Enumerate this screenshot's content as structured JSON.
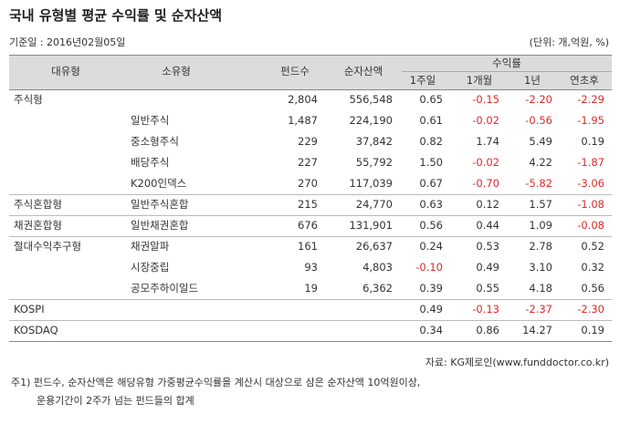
{
  "header": {
    "title": "국내 유형별 평균 수익률 및 순자산액",
    "date": "기준일 : 2016년02월05일",
    "unit": "(단위: 개,억원, %)"
  },
  "table": {
    "columns": [
      "대유형",
      "소유형",
      "펀드수",
      "순자산액"
    ],
    "returns_title": "수익률",
    "periods": [
      "1주일",
      "1개월",
      "1년",
      "연초후"
    ],
    "rows": [
      {
        "group": "주식형",
        "count": "2,804",
        "assets": "556,548",
        "returns": [
          "0.65",
          "-0.15",
          "-2.20",
          "-2.29"
        ]
      },
      {
        "name": "일반주식",
        "count": "1,487",
        "assets": "224,190",
        "returns": [
          "0.61",
          "-0.02",
          "-0.56",
          "-1.95"
        ]
      },
      {
        "name": "중소형주식",
        "count": "229",
        "assets": "37,842",
        "returns": [
          "0.82",
          "1.74",
          "5.49",
          "0.19"
        ]
      },
      {
        "name": "배당주식",
        "count": "227",
        "assets": "55,792",
        "returns": [
          "1.50",
          "-0.02",
          "4.22",
          "-1.87"
        ]
      },
      {
        "name": "K200인덱스",
        "count": "270",
        "assets": "117,039",
        "returns": [
          "0.67",
          "-0.70",
          "-5.82",
          "-3.06"
        ]
      },
      {
        "group": "주식혼합형",
        "name": "일반주식혼합",
        "count": "215",
        "assets": "24,770",
        "returns": [
          "0.63",
          "0.12",
          "1.57",
          "-1.08"
        ]
      },
      {
        "group": "채권혼합형",
        "name": "일반채권혼합",
        "count": "676",
        "assets": "131,901",
        "returns": [
          "0.56",
          "0.44",
          "1.09",
          "-0.08"
        ]
      },
      {
        "group": "절대수익추구형",
        "name": "채권알파",
        "count": "161",
        "assets": "26,637",
        "returns": [
          "0.24",
          "0.53",
          "2.78",
          "0.52"
        ]
      },
      {
        "name": "시장중립",
        "count": "93",
        "assets": "4,803",
        "returns": [
          "-0.10",
          "0.49",
          "3.10",
          "0.32"
        ]
      },
      {
        "name": "공모주하이일드",
        "count": "19",
        "assets": "6,362",
        "returns": [
          "0.39",
          "0.55",
          "4.18",
          "0.56"
        ]
      },
      {
        "group": "KOSPI",
        "returns": [
          "0.49",
          "-0.13",
          "-2.37",
          "-2.30"
        ]
      },
      {
        "group": "KOSDAQ",
        "returns": [
          "0.34",
          "0.86",
          "14.27",
          "0.19"
        ]
      }
    ]
  },
  "footer": {
    "source": "자료: KG제로인(www.funddoctor.co.kr)",
    "notes": [
      "주1) 펀드수, 순자산액은 해당유형 가중평균수익률을 계산시 대상으로 삼은 순자산액 10억원이상,",
      "운용기간이 2주가 넘는 펀드들의 합계"
    ]
  }
}
